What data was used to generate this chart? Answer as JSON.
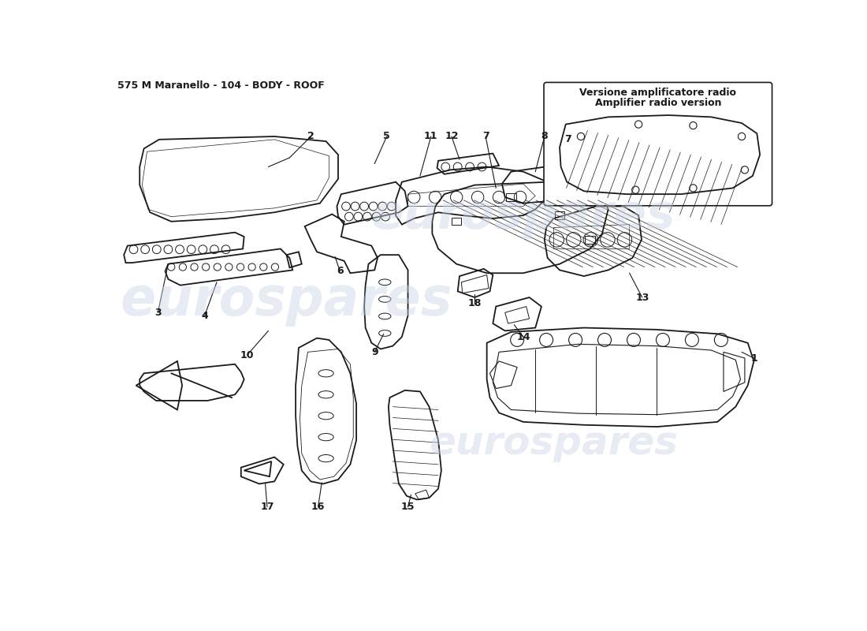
{
  "title": "575 M Maranello - 104 - BODY - ROOF",
  "title_fontsize": 9,
  "bg_color": "#ffffff",
  "line_color": "#1a1a1a",
  "watermark_text": "eurospares",
  "watermark_color": "#c8d4e8",
  "watermark_alpha": 0.45,
  "inset_title_line1": "Versione amplificatore radio",
  "inset_title_line2": "Amplifier radio version"
}
